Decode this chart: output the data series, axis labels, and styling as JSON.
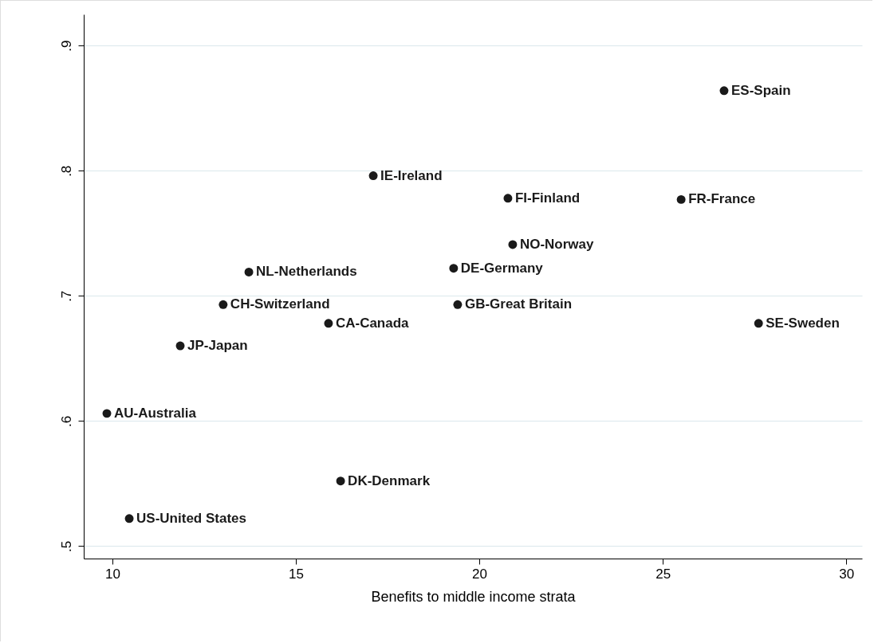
{
  "chart_data": {
    "type": "scatter",
    "xlabel": "Benefits to middle income strata",
    "x": [
      26.67,
      17.11,
      20.78,
      25.5,
      20.91,
      19.3,
      13.72,
      13.02,
      19.41,
      15.89,
      27.61,
      11.85,
      9.85,
      16.22,
      10.46
    ],
    "series": [
      {
        "color": "#1a1a1a",
        "values": [
          0.864,
          0.796,
          0.778,
          0.777,
          0.741,
          0.722,
          0.719,
          0.693,
          0.693,
          0.678,
          0.678,
          0.66,
          0.606,
          0.552,
          0.522
        ]
      }
    ],
    "annotations": [
      {
        "text": "ES-Spain",
        "x": 26.67,
        "y": 0.864
      },
      {
        "text": "IE-Ireland",
        "x": 17.11,
        "y": 0.796
      },
      {
        "text": "FI-Finland",
        "x": 20.78,
        "y": 0.778
      },
      {
        "text": "FR-France",
        "x": 25.5,
        "y": 0.777
      },
      {
        "text": "NO-Norway",
        "x": 20.91,
        "y": 0.741
      },
      {
        "text": "DE-Germany",
        "x": 19.3,
        "y": 0.722
      },
      {
        "text": "NL-Netherlands",
        "x": 13.72,
        "y": 0.719
      },
      {
        "text": "CH-Switzerland",
        "x": 13.02,
        "y": 0.693
      },
      {
        "text": "GB-Great Britain",
        "x": 19.41,
        "y": 0.693
      },
      {
        "text": "CA-Canada",
        "x": 15.89,
        "y": 0.678
      },
      {
        "text": "SE-Sweden",
        "x": 27.61,
        "y": 0.678
      },
      {
        "text": "JP-Japan",
        "x": 11.85,
        "y": 0.66
      },
      {
        "text": "AU-Australia",
        "x": 9.85,
        "y": 0.606
      },
      {
        "text": "DK-Denmark",
        "x": 16.22,
        "y": 0.552
      },
      {
        "text": "US-United States",
        "x": 10.46,
        "y": 0.522
      }
    ],
    "xlim": [
      9.22,
      30.43
    ],
    "ylim": [
      0.49,
      0.925
    ],
    "xticks": [
      10,
      15,
      20,
      25,
      30
    ],
    "yticks": [
      {
        "value": 0.5,
        "label": ".5"
      },
      {
        "value": 0.6,
        "label": ".6"
      },
      {
        "value": 0.7,
        "label": ".7"
      },
      {
        "value": 0.8,
        "label": ".8"
      },
      {
        "value": 0.9,
        "label": ".9"
      }
    ],
    "grid": "y",
    "marker": "circle"
  }
}
